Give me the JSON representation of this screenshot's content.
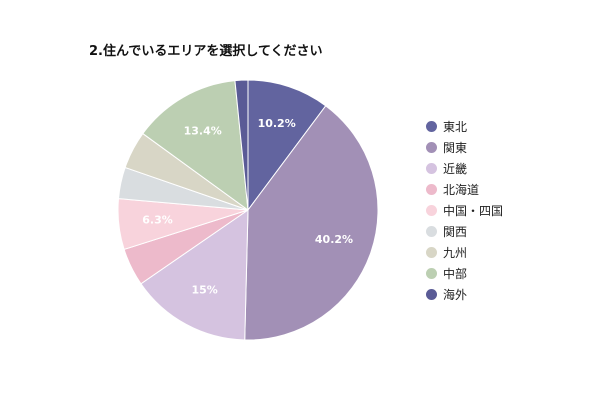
{
  "chart_data": {
    "type": "pie",
    "title": "2.住んでいるエリアを選択してください",
    "legend_position": "right",
    "slices": [
      {
        "name": "東北",
        "value": 10.2,
        "label": "10.2%",
        "color": "#62649f"
      },
      {
        "name": "関東",
        "value": 40.2,
        "label": "40.2%",
        "color": "#a290b6"
      },
      {
        "name": "近畿",
        "value": 15,
        "label": "15%",
        "color": "#d5c3e0"
      },
      {
        "name": "北海道",
        "value": 4.7,
        "label": "",
        "color": "#edbacb"
      },
      {
        "name": "中国・四国",
        "value": 6.3,
        "label": "6.3%",
        "color": "#f8d3dc"
      },
      {
        "name": "関西",
        "value": 3.9,
        "label": "",
        "color": "#d9dde0"
      },
      {
        "name": "九州",
        "value": 4.7,
        "label": "",
        "color": "#d8d6c6"
      },
      {
        "name": "中部",
        "value": 13.4,
        "label": "13.4%",
        "color": "#bccfb2"
      },
      {
        "name": "海外",
        "value": 1.6,
        "label": "",
        "color": "#5a5b96"
      }
    ]
  }
}
